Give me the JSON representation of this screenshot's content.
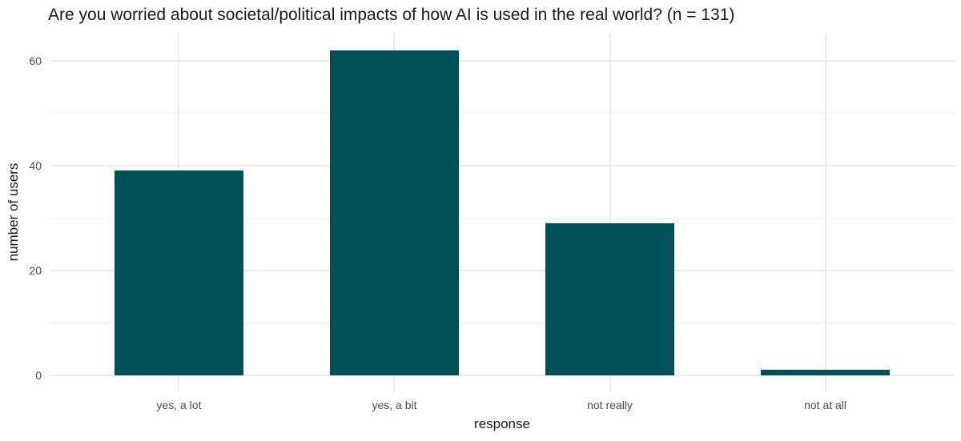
{
  "colors": {
    "bar": "#00505a",
    "grid_major": "#ebebeb",
    "grid_minor": "#f2f2f2",
    "axis_text": "#4d4d4d",
    "title_text": "#1a1a1a",
    "background": "#ffffff"
  },
  "chart_data": {
    "type": "bar",
    "title": "Are you worried about societal/political impacts of how AI is used in the real world? (n = 131)",
    "categories": [
      "yes, a lot",
      "yes, a bit",
      "not really",
      "not at all"
    ],
    "values": [
      39,
      62,
      29,
      1
    ],
    "n": 131,
    "xlabel": "response",
    "ylabel": "number of users",
    "ylim": [
      0,
      65
    ],
    "yticks": [
      0,
      20,
      40,
      60
    ],
    "yminor": [
      10,
      30,
      50
    ],
    "grid": true,
    "legend": false,
    "bar_width_fraction": 0.6
  }
}
